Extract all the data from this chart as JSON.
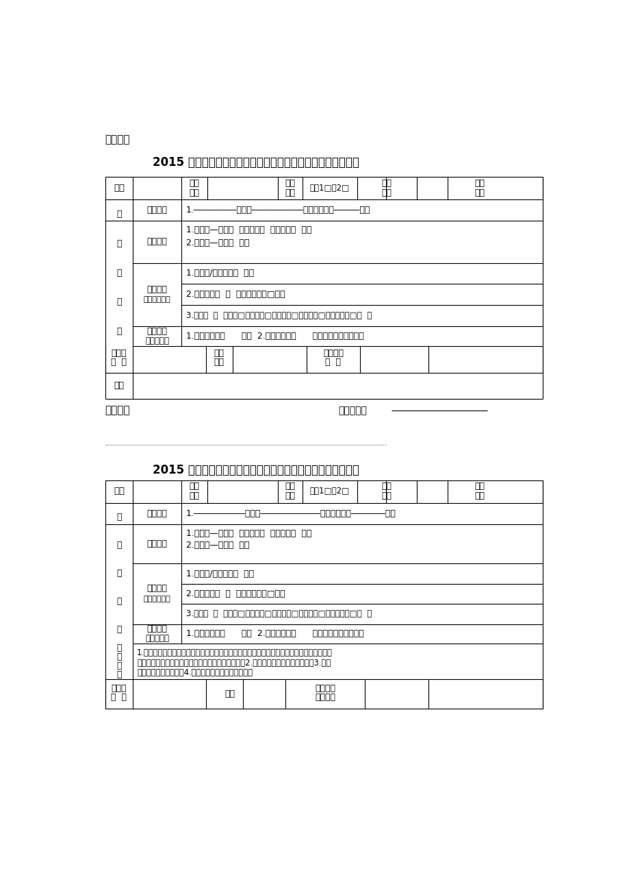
{
  "background_color": "#ffffff",
  "text_color": "#000000",
  "page_width": 9.2,
  "page_height": 13.03,
  "top_label": "家长存根",
  "title": "2015 年龙华新区公办初一学位预申请资料初审确认表（深户）",
  "bottom_label": "学校存根",
  "web_sign": "网审签名：",
  "title2": "2015 年龙华新区公办初一学位预申请资料初审确认表（深户）",
  "xm": "姓名",
  "sqxx": "申请学校",
  "xwlx": "学位类型",
  "lx12": "类型1□类2□",
  "cdff": "初定积分",
  "clbh": "材料编号",
  "xxjj": "小学学籍",
  "hujicailiao": "户籍材料",
  "fangcailiao": "住房材料",
  "zhishen": "（只审一项）",
  "qitacailiao": "其它材料",
  "fuzhu": "（辅助性）",
  "xuti": "需提交材料",
  "yanzheng": "验证人签  名",
  "jiachang": "家长签名",
  "jialiandian": "家长联系电  话",
  "beizhu": "备注",
  "wenxin": "温馨提示",
  "zixun": "咋询",
  "yzdw": "验证单位（公章）",
  "xxjj_text": "1.―――――办事处――――――小学，六年级―――班。",
  "xxjj_text2": "1.――――――办事处―――――――小学，六年级――――班。",
  "huji1": "1.户口本—父亲（  ）；母亲（  ）；儿童（  ）；",
  "huji2": "2.出生证—儿童（  ）。",
  "fang1": "1.房产证/购房合同（  ）；",
  "fang2": "2.租赁合同（  ）  《住宅或商住□》；",
  "fang3": "3.其它（  ）  《祖屋□、军产房□、集资房□、自建房□、集体宿舍□》  。",
  "qita_text": "1.独生子女证（      ）；  2.水电费单等（      ）《其它房产提供》。",
  "wenxin_text1": "1.按照学校招生计划、学位类型及积分排序依次录取，录满为止，其余符合就读条件的小六毕",
  "wenxin_text2": "业生自行选择到民办学校就读，并享受政府学位补赂2.积分以各职能部门审核为准；3.保证",
  "wenxin_text3": "提交的材料真实有效；4.对提交的材料认定没有异议。"
}
